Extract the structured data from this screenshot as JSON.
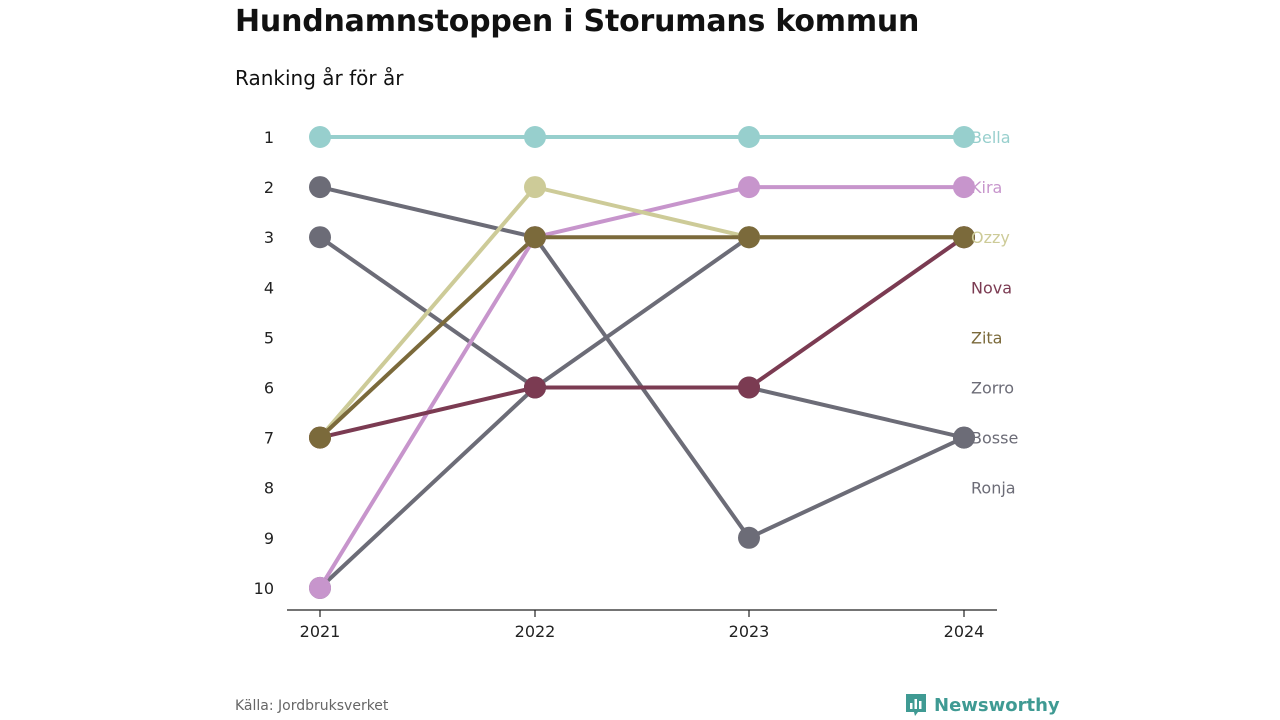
{
  "title": "Hundnamnstoppen i Storumans kommun",
  "subtitle": "Ranking år för år",
  "source": "Källa: Jordbruksverket",
  "brand": {
    "name": "Newsworthy",
    "icon": "newsworthy-logo-icon",
    "color": "#3f9a93"
  },
  "chart_data": {
    "type": "line",
    "subtype": "bump",
    "x": [
      "2021",
      "2022",
      "2023",
      "2024"
    ],
    "yticks": [
      "1",
      "2",
      "3",
      "4",
      "5",
      "6",
      "7",
      "8",
      "9",
      "10"
    ],
    "ylim": [
      1,
      10
    ],
    "y_inverted": true,
    "grid": false,
    "series": [
      {
        "name": "Bella",
        "values": [
          1,
          1,
          1,
          1
        ],
        "color": "#97cfcd"
      },
      {
        "name": "Kira",
        "values": [
          10,
          3,
          2,
          2
        ],
        "color": "#c795cc"
      },
      {
        "name": "Ozzy",
        "values": [
          7,
          2,
          3,
          3
        ],
        "color": "#cdcb98"
      },
      {
        "name": "Nova",
        "values": [
          7,
          6,
          6,
          3
        ],
        "color": "#7b3b52"
      },
      {
        "name": "Zita",
        "values": [
          7,
          3,
          3,
          3
        ],
        "color": "#7b6a3b"
      },
      {
        "name": "Zorro",
        "values": [
          3,
          6,
          3,
          3
        ],
        "color": "#6c6c77"
      },
      {
        "name": "Bosse",
        "values": [
          10,
          6,
          6,
          7
        ],
        "color": "#6c6c77"
      },
      {
        "name": "Ronja",
        "values": [
          2,
          3,
          9,
          7
        ],
        "color": "#6c6c77"
      }
    ],
    "legend": [
      "Bella",
      "Kira",
      "Ozzy",
      "Nova",
      "Zita",
      "Zorro",
      "Bosse",
      "Ronja"
    ],
    "legend_colors": [
      "#97cfcd",
      "#c795cc",
      "#cdcb98",
      "#7b3b52",
      "#7b6a3b",
      "#6c6c77",
      "#6c6c77",
      "#6c6c77"
    ],
    "legend_placement": "right"
  }
}
